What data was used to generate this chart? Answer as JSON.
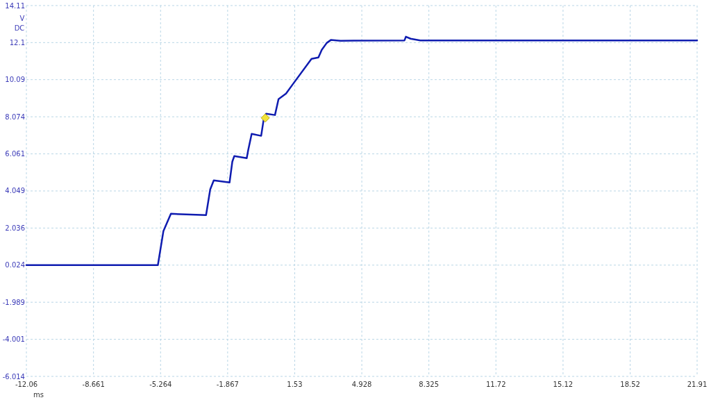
{
  "chart_data": {
    "type": "line",
    "xlabel": "ms",
    "ylabel": "V\nDC",
    "xlim": [
      -12.06,
      21.91
    ],
    "ylim": [
      -6.014,
      14.11
    ],
    "xticks": [
      -12.06,
      -8.661,
      -5.264,
      -1.867,
      1.53,
      4.928,
      8.325,
      11.72,
      15.12,
      18.52,
      21.91
    ],
    "yticks": [
      -6.014,
      -4.001,
      -1.989,
      0.024,
      2.036,
      4.049,
      6.061,
      8.074,
      10.09,
      12.1,
      14.11
    ],
    "grid": true,
    "line_style": "solid",
    "series": [
      {
        "color": "#0f1cb0",
        "x": [
          -12.06,
          -5.4,
          -5.12,
          -4.74,
          -2.96,
          -2.75,
          -2.57,
          -1.77,
          -1.63,
          -1.53,
          -0.9,
          -0.83,
          -0.65,
          -0.17,
          -0.03,
          0.08,
          0.53,
          0.71,
          1.09,
          1.4,
          2.38,
          2.73,
          2.9,
          3.15,
          3.36,
          3.85,
          7.09,
          7.16,
          7.4,
          7.89,
          21.91
        ],
        "values": [
          0.024,
          0.024,
          1.87,
          2.81,
          2.74,
          4.13,
          4.62,
          4.51,
          5.64,
          5.94,
          5.83,
          6.24,
          7.15,
          7.04,
          8.01,
          8.24,
          8.17,
          9.03,
          9.33,
          9.79,
          11.22,
          11.29,
          11.71,
          12.08,
          12.24,
          12.2,
          12.22,
          12.42,
          12.31,
          12.22,
          12.22
        ]
      },
      {
        "type": "scatter",
        "color": "#f2e33a",
        "marker": "diamond",
        "x": [
          0.04
        ],
        "values": [
          8.01
        ]
      }
    ]
  }
}
